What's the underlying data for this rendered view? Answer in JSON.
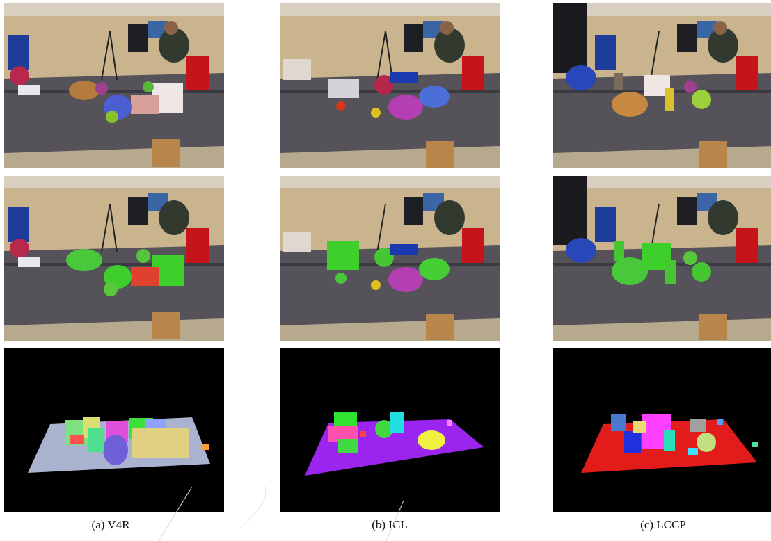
{
  "figure": {
    "columns": [
      {
        "id": "v4r",
        "caption": "(a) V4R"
      },
      {
        "id": "icl",
        "caption": "(b) ICL"
      },
      {
        "id": "lccp",
        "caption": "(c) LCCP"
      }
    ],
    "rows": [
      "rgb-input",
      "rgb-overlay",
      "segmentation-map"
    ],
    "segmentation_plane_colors": {
      "v4r": "#a9b2cf",
      "icl": "#9b25ef",
      "lccp": "#e21b1b"
    }
  }
}
